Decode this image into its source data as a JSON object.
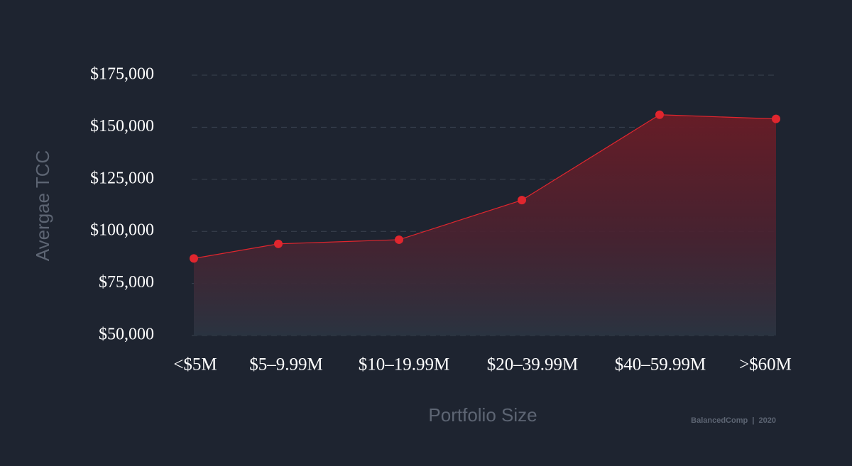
{
  "chart_data": {
    "type": "area",
    "y_label": "Avergae TCC",
    "x_label": "Portfolio Size",
    "credit": "BalancedComp  |  2020",
    "categories": [
      "<$5M",
      "$5–9.99M",
      "$10–19.99M",
      "$20–39.99M",
      "$40–59.99M",
      ">$60M"
    ],
    "values": [
      87000,
      94000,
      96000,
      115000,
      156000,
      154000
    ],
    "color": "#e0262e",
    "ylim": [
      50000,
      175000
    ],
    "yticks": [
      {
        "value": 50000,
        "label": "$50,000"
      },
      {
        "value": 75000,
        "label": "$75,000"
      },
      {
        "value": 100000,
        "label": "$100,000"
      },
      {
        "value": 125000,
        "label": "$125,000"
      },
      {
        "value": 150000,
        "label": "$150,000"
      },
      {
        "value": 175000,
        "label": "$175,000"
      }
    ],
    "grid": true
  }
}
